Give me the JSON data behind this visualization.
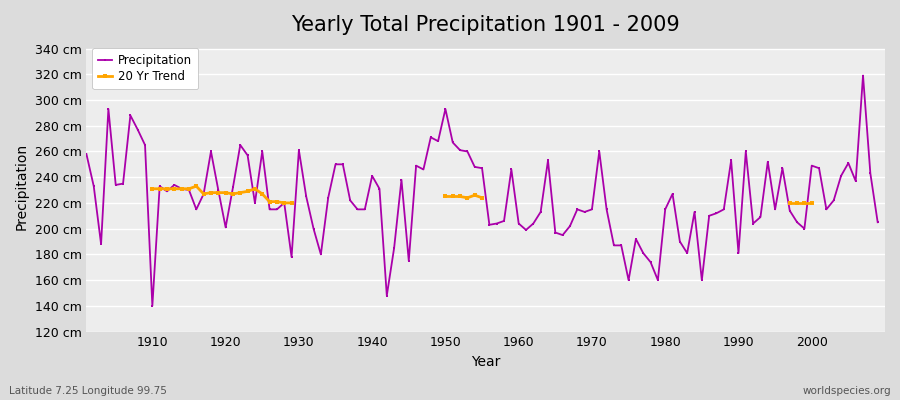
{
  "title": "Yearly Total Precipitation 1901 - 2009",
  "xlabel": "Year",
  "ylabel": "Precipitation",
  "subtitle_left": "Latitude 7.25 Longitude 99.75",
  "subtitle_right": "worldspecies.org",
  "ylim": [
    120,
    345
  ],
  "yticks": [
    120,
    140,
    160,
    180,
    200,
    220,
    240,
    260,
    280,
    300,
    320,
    340
  ],
  "ytick_labels": [
    "120 cm",
    "140 cm",
    "160 cm",
    "180 cm",
    "200 cm",
    "220 cm",
    "240 cm",
    "260 cm",
    "280 cm",
    "300 cm",
    "320 cm",
    "340 cm"
  ],
  "years": [
    1901,
    1902,
    1903,
    1904,
    1905,
    1906,
    1907,
    1908,
    1909,
    1910,
    1911,
    1912,
    1913,
    1914,
    1915,
    1916,
    1917,
    1918,
    1919,
    1920,
    1921,
    1922,
    1923,
    1924,
    1925,
    1926,
    1927,
    1928,
    1929,
    1930,
    1931,
    1932,
    1933,
    1934,
    1935,
    1936,
    1937,
    1938,
    1939,
    1940,
    1941,
    1942,
    1943,
    1944,
    1945,
    1946,
    1947,
    1948,
    1949,
    1950,
    1951,
    1952,
    1953,
    1954,
    1955,
    1956,
    1957,
    1958,
    1959,
    1960,
    1961,
    1962,
    1963,
    1964,
    1965,
    1966,
    1967,
    1968,
    1969,
    1970,
    1971,
    1972,
    1973,
    1974,
    1975,
    1976,
    1977,
    1978,
    1979,
    1980,
    1981,
    1982,
    1983,
    1984,
    1985,
    1986,
    1987,
    1988,
    1989,
    1990,
    1991,
    1992,
    1993,
    1994,
    1995,
    1996,
    1997,
    1998,
    1999,
    2000,
    2001,
    2002,
    2003,
    2004,
    2005,
    2006,
    2007,
    2008,
    2009
  ],
  "precip": [
    258,
    233,
    188,
    293,
    234,
    235,
    288,
    277,
    265,
    140,
    233,
    229,
    234,
    231,
    230,
    215,
    227,
    260,
    230,
    201,
    232,
    265,
    257,
    220,
    260,
    215,
    215,
    220,
    178,
    261,
    225,
    200,
    180,
    224,
    250,
    250,
    222,
    215,
    215,
    241,
    231,
    148,
    185,
    238,
    175,
    249,
    246,
    271,
    268,
    293,
    267,
    261,
    260,
    248,
    247,
    203,
    204,
    206,
    246,
    204,
    199,
    204,
    213,
    253,
    197,
    195,
    202,
    215,
    213,
    215,
    260,
    215,
    187,
    187,
    160,
    192,
    181,
    174,
    160,
    215,
    227,
    190,
    181,
    213,
    160,
    210,
    212,
    215,
    253,
    181,
    260,
    204,
    209,
    252,
    215,
    247,
    214,
    205,
    200,
    249,
    247,
    215,
    222,
    241,
    251,
    237,
    319,
    243,
    205
  ],
  "trend_seg1_years": [
    1910,
    1911,
    1912,
    1913,
    1914,
    1915,
    1916,
    1917,
    1918,
    1919,
    1920,
    1921,
    1922,
    1923,
    1924,
    1925,
    1926,
    1927,
    1928,
    1929
  ],
  "trend_seg1_vals": [
    231,
    231,
    231,
    231,
    231,
    231,
    233,
    227,
    228,
    228,
    228,
    227,
    228,
    229,
    231,
    227,
    221,
    221,
    220,
    220
  ],
  "trend_seg2_years": [
    1950,
    1951,
    1952,
    1953,
    1954,
    1955
  ],
  "trend_seg2_vals": [
    225,
    225,
    225,
    224,
    226,
    224
  ],
  "trend_seg3_years": [
    1997,
    1998,
    1999,
    2000
  ],
  "trend_seg3_vals": [
    220,
    220,
    220,
    220
  ],
  "precip_color": "#aa00aa",
  "trend_color": "#FFA500",
  "bg_color": "#dcdcdc",
  "plot_bg_color": "#dcdcdc",
  "grid_color": "#ffffff",
  "title_fontsize": 15,
  "label_fontsize": 10,
  "tick_fontsize": 9,
  "xticks": [
    1910,
    1920,
    1930,
    1940,
    1950,
    1960,
    1970,
    1980,
    1990,
    2000
  ]
}
